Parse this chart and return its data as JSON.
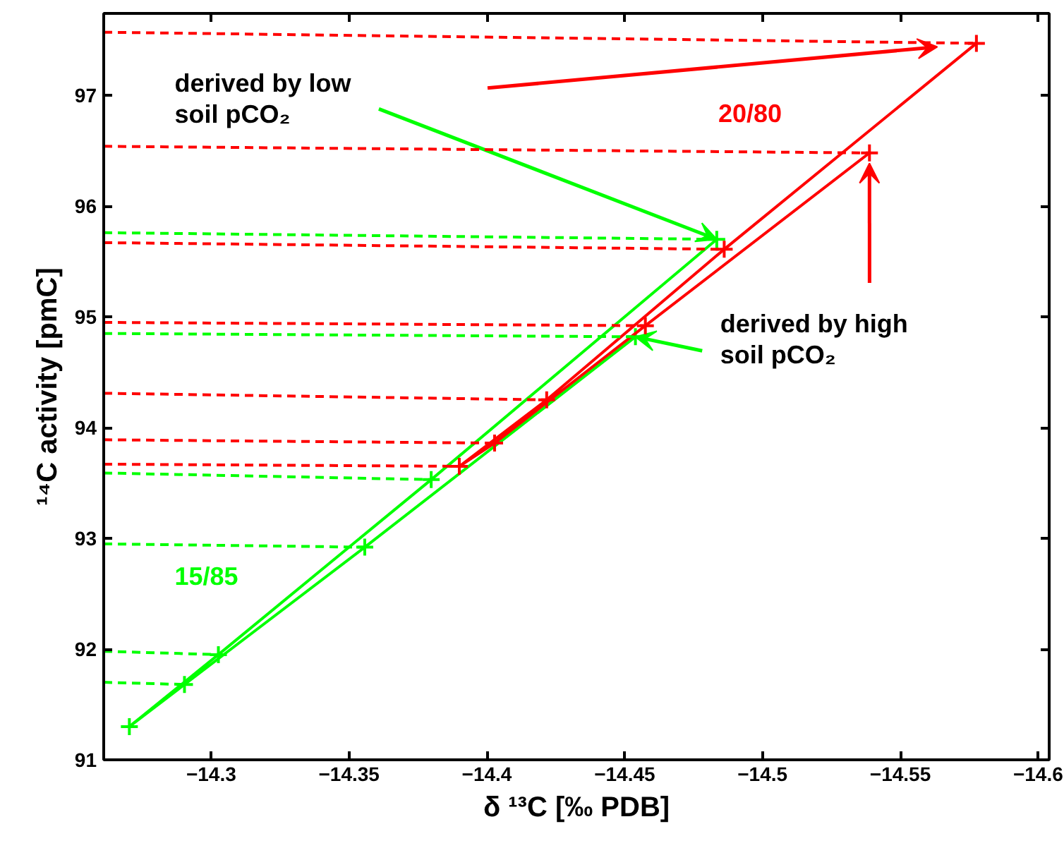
{
  "chart_data": {
    "type": "line",
    "xlabel": "δ ¹³C [‰ PDB]",
    "ylabel": "¹⁴C activity [pmC]",
    "xlim": [
      -14.261,
      -14.604
    ],
    "ylim": [
      91,
      97.74
    ],
    "xticks": [
      {
        "value": -14.3,
        "label": "−14.3"
      },
      {
        "value": -14.35,
        "label": "−14.35"
      },
      {
        "value": -14.4,
        "label": "−14.4"
      },
      {
        "value": -14.45,
        "label": "−14.45"
      },
      {
        "value": -14.5,
        "label": "−14.5"
      },
      {
        "value": -14.55,
        "label": "−14.55"
      },
      {
        "value": -14.6,
        "label": "−14.6"
      }
    ],
    "yticks": [
      91,
      92,
      93,
      94,
      95,
      96,
      97
    ],
    "grid": false,
    "series": [
      {
        "color": "#00ff00",
        "marker": "cross",
        "line_style": "solid",
        "x": [
          -14.4539,
          -14.3557,
          -14.2903,
          -14.2703,
          -14.3026,
          -14.3798,
          -14.4834
        ],
        "values": [
          94.82,
          92.92,
          91.68,
          91.3,
          91.95,
          93.53,
          95.7
        ]
      },
      {
        "color": "#ff0000",
        "marker": "cross",
        "line_style": "solid",
        "x": [
          -14.5388,
          -14.4575,
          -14.4028,
          -14.39,
          -14.4217,
          -14.4861,
          -14.5776
        ],
        "values": [
          96.48,
          94.92,
          93.86,
          93.65,
          94.25,
          95.61,
          97.47
        ]
      },
      {
        "color": "#00ff00",
        "marker": "none",
        "line_style": "dashed",
        "x": [
          -14.261,
          -14.4834
        ],
        "values": [
          95.76,
          95.7
        ]
      },
      {
        "color": "#00ff00",
        "marker": "none",
        "line_style": "dashed",
        "x": [
          -14.261,
          -14.4539
        ],
        "values": [
          94.85,
          94.82
        ]
      },
      {
        "color": "#00ff00",
        "marker": "none",
        "line_style": "dashed",
        "x": [
          -14.261,
          -14.3798
        ],
        "values": [
          93.59,
          93.53
        ]
      },
      {
        "color": "#00ff00",
        "marker": "none",
        "line_style": "dashed",
        "x": [
          -14.261,
          -14.3557
        ],
        "values": [
          92.95,
          92.92
        ]
      },
      {
        "color": "#00ff00",
        "marker": "none",
        "line_style": "dashed",
        "x": [
          -14.261,
          -14.3026
        ],
        "values": [
          91.98,
          91.95
        ]
      },
      {
        "color": "#00ff00",
        "marker": "none",
        "line_style": "dashed",
        "x": [
          -14.261,
          -14.2903
        ],
        "values": [
          91.7,
          91.68
        ]
      },
      {
        "color": "#ff0000",
        "marker": "none",
        "line_style": "dashed",
        "x": [
          -14.261,
          -14.5776
        ],
        "values": [
          97.57,
          97.47
        ]
      },
      {
        "color": "#ff0000",
        "marker": "none",
        "line_style": "dashed",
        "x": [
          -14.261,
          -14.5388
        ],
        "values": [
          96.54,
          96.48
        ]
      },
      {
        "color": "#ff0000",
        "marker": "none",
        "line_style": "dashed",
        "x": [
          -14.261,
          -14.4861
        ],
        "values": [
          95.67,
          95.61
        ]
      },
      {
        "color": "#ff0000",
        "marker": "none",
        "line_style": "dashed",
        "x": [
          -14.261,
          -14.4575
        ],
        "values": [
          94.95,
          94.92
        ]
      },
      {
        "color": "#ff0000",
        "marker": "none",
        "line_style": "dashed",
        "x": [
          -14.261,
          -14.4217
        ],
        "values": [
          94.31,
          94.25
        ]
      },
      {
        "color": "#ff0000",
        "marker": "none",
        "line_style": "dashed",
        "x": [
          -14.261,
          -14.4028
        ],
        "values": [
          93.89,
          93.86
        ]
      },
      {
        "color": "#ff0000",
        "marker": "none",
        "line_style": "dashed",
        "x": [
          -14.261,
          -14.39
        ],
        "values": [
          93.67,
          93.65
        ]
      }
    ],
    "annotations": [
      {
        "text": "derived by low\nsoil pCO₂",
        "x": -14.4834,
        "y": 95.7
      },
      {
        "text": "derived by high\nsoil pCO₂",
        "x": -14.4539,
        "y": 94.82
      },
      "20/80",
      "15/85"
    ]
  }
}
